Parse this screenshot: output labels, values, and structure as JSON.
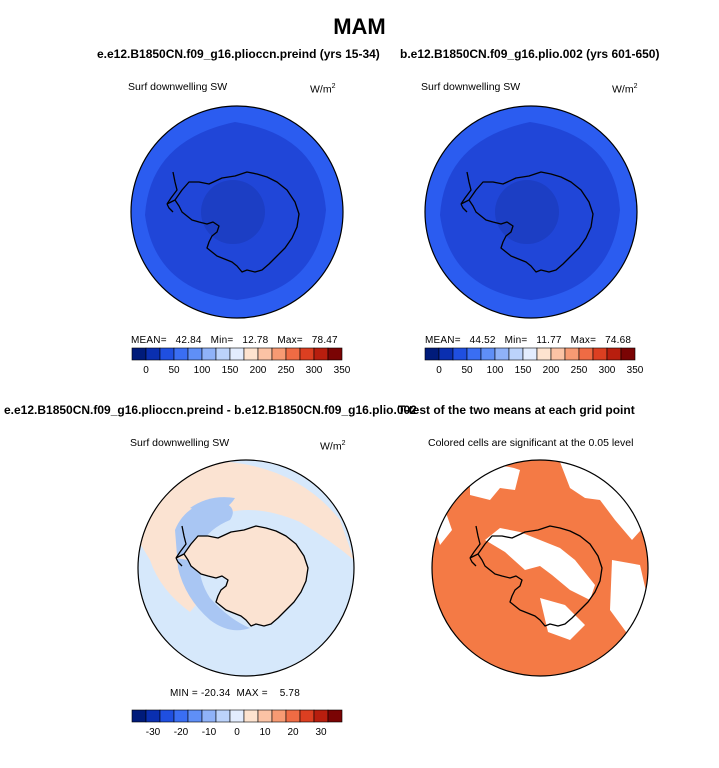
{
  "page": {
    "title": "MAM"
  },
  "chart_data": [
    {
      "type": "polar-map",
      "title": "e.e12.B1850CN.f09_g16.plioccn.preind (yrs 15-34)",
      "variable": "Surf downwelling SW",
      "units": "W/m",
      "units_sup": "2",
      "mean_label": "MEAN=",
      "mean": "42.84",
      "min_label": "Min=",
      "min": "12.78",
      "max_label": "Max=",
      "max": "78.47",
      "colorbar_ticks": [
        "0",
        "50",
        "100",
        "150",
        "200",
        "250",
        "300",
        "350"
      ]
    },
    {
      "type": "polar-map",
      "title": "b.e12.B1850CN.f09_g16.plio.002 (yrs 601-650)",
      "variable": "Surf downwelling SW",
      "units": "W/m",
      "units_sup": "2",
      "mean_label": "MEAN=",
      "mean": "44.52",
      "min_label": "Min=",
      "min": "11.77",
      "max_label": "Max=",
      "max": "74.68",
      "colorbar_ticks": [
        "0",
        "50",
        "100",
        "150",
        "200",
        "250",
        "300",
        "350"
      ]
    },
    {
      "type": "polar-map",
      "title": "e.e12.B1850CN.f09_g16.plioccn.preind - b.e12.B1850CN.f09_g16.plio.002",
      "variable": "Surf downwelling SW",
      "units": "W/m",
      "units_sup": "2",
      "min_label": "MIN =",
      "min": "-20.34",
      "max_label": "MAX =",
      "max": "5.78",
      "colorbar_ticks": [
        "-30",
        "-20",
        "-10",
        "0",
        "10",
        "20",
        "30"
      ]
    },
    {
      "type": "polar-map",
      "title": "T-test of the two means at each grid point",
      "subtitle": "Colored cells are significant at the 0.05 level"
    }
  ],
  "colors": {
    "map_fill": "#2b5cf0",
    "map_dark": "#2046d8",
    "map_center": "#1c3ec4",
    "map_light": "#4a78f5",
    "diff_base": "#d6e8fb",
    "diff_pos": "#fbe3d2",
    "diff_neg": "#a9c6f3",
    "sig": "#f47a45",
    "colorbar": [
      "#001b7a",
      "#0a2fb0",
      "#1f4fe0",
      "#3a6ef3",
      "#5f8ff7",
      "#8fb2f8",
      "#bcd3fb",
      "#e3edfe",
      "#fde3cf",
      "#fbc3a5",
      "#f79a73",
      "#ef6b44",
      "#dc3f21",
      "#b81e0e",
      "#7a0404"
    ]
  }
}
